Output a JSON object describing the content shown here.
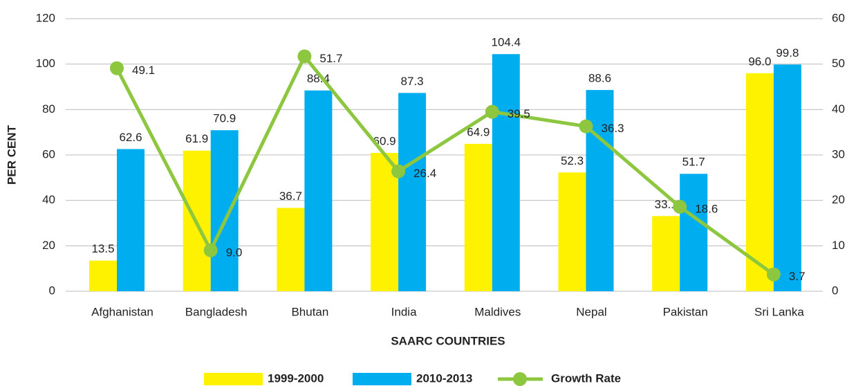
{
  "chart_data": {
    "type": "bar_line",
    "y_label": "PER CENT",
    "x_label": "SAARC COUNTRIES",
    "categories": [
      "Afghanistan",
      "Bangladesh",
      "Bhutan",
      "India",
      "Maldives",
      "Nepal",
      "Pakistan",
      "Sri Lanka"
    ],
    "series": [
      {
        "name": "1999-2000",
        "type": "bar",
        "color": "#fff200",
        "values": [
          13.5,
          61.9,
          36.7,
          60.9,
          64.9,
          52.3,
          33.1,
          96.0
        ],
        "value_labels": [
          "13.5",
          "61.9",
          "36.7",
          "60.9",
          "64.9",
          "52.3",
          "33.1",
          "96.0"
        ]
      },
      {
        "name": "2010-2013",
        "type": "bar",
        "color": "#00aeef",
        "values": [
          62.6,
          70.9,
          88.4,
          87.3,
          104.4,
          88.6,
          51.7,
          99.8
        ],
        "value_labels": [
          "62.6",
          "70.9",
          "88.4",
          "87.3",
          "104.4",
          "88.6",
          "51.7",
          "99.8"
        ]
      },
      {
        "name": "Growth Rate",
        "type": "line",
        "axis": "y2",
        "color": "#8dc63f",
        "values": [
          49.1,
          9.0,
          51.7,
          26.4,
          39.5,
          36.3,
          18.6,
          3.7
        ],
        "value_labels": [
          "49.1",
          "9.0",
          "51.7",
          "26.4",
          "39.5",
          "36.3",
          "18.6",
          "3.7"
        ]
      }
    ],
    "ylim": [
      0,
      120
    ],
    "yticks": [
      0,
      20,
      40,
      60,
      80,
      100,
      120
    ],
    "y2lim": [
      0,
      60
    ],
    "y2ticks": [
      0,
      10,
      20,
      30,
      40,
      50,
      60
    ],
    "grid": true,
    "legend": "bottom"
  }
}
